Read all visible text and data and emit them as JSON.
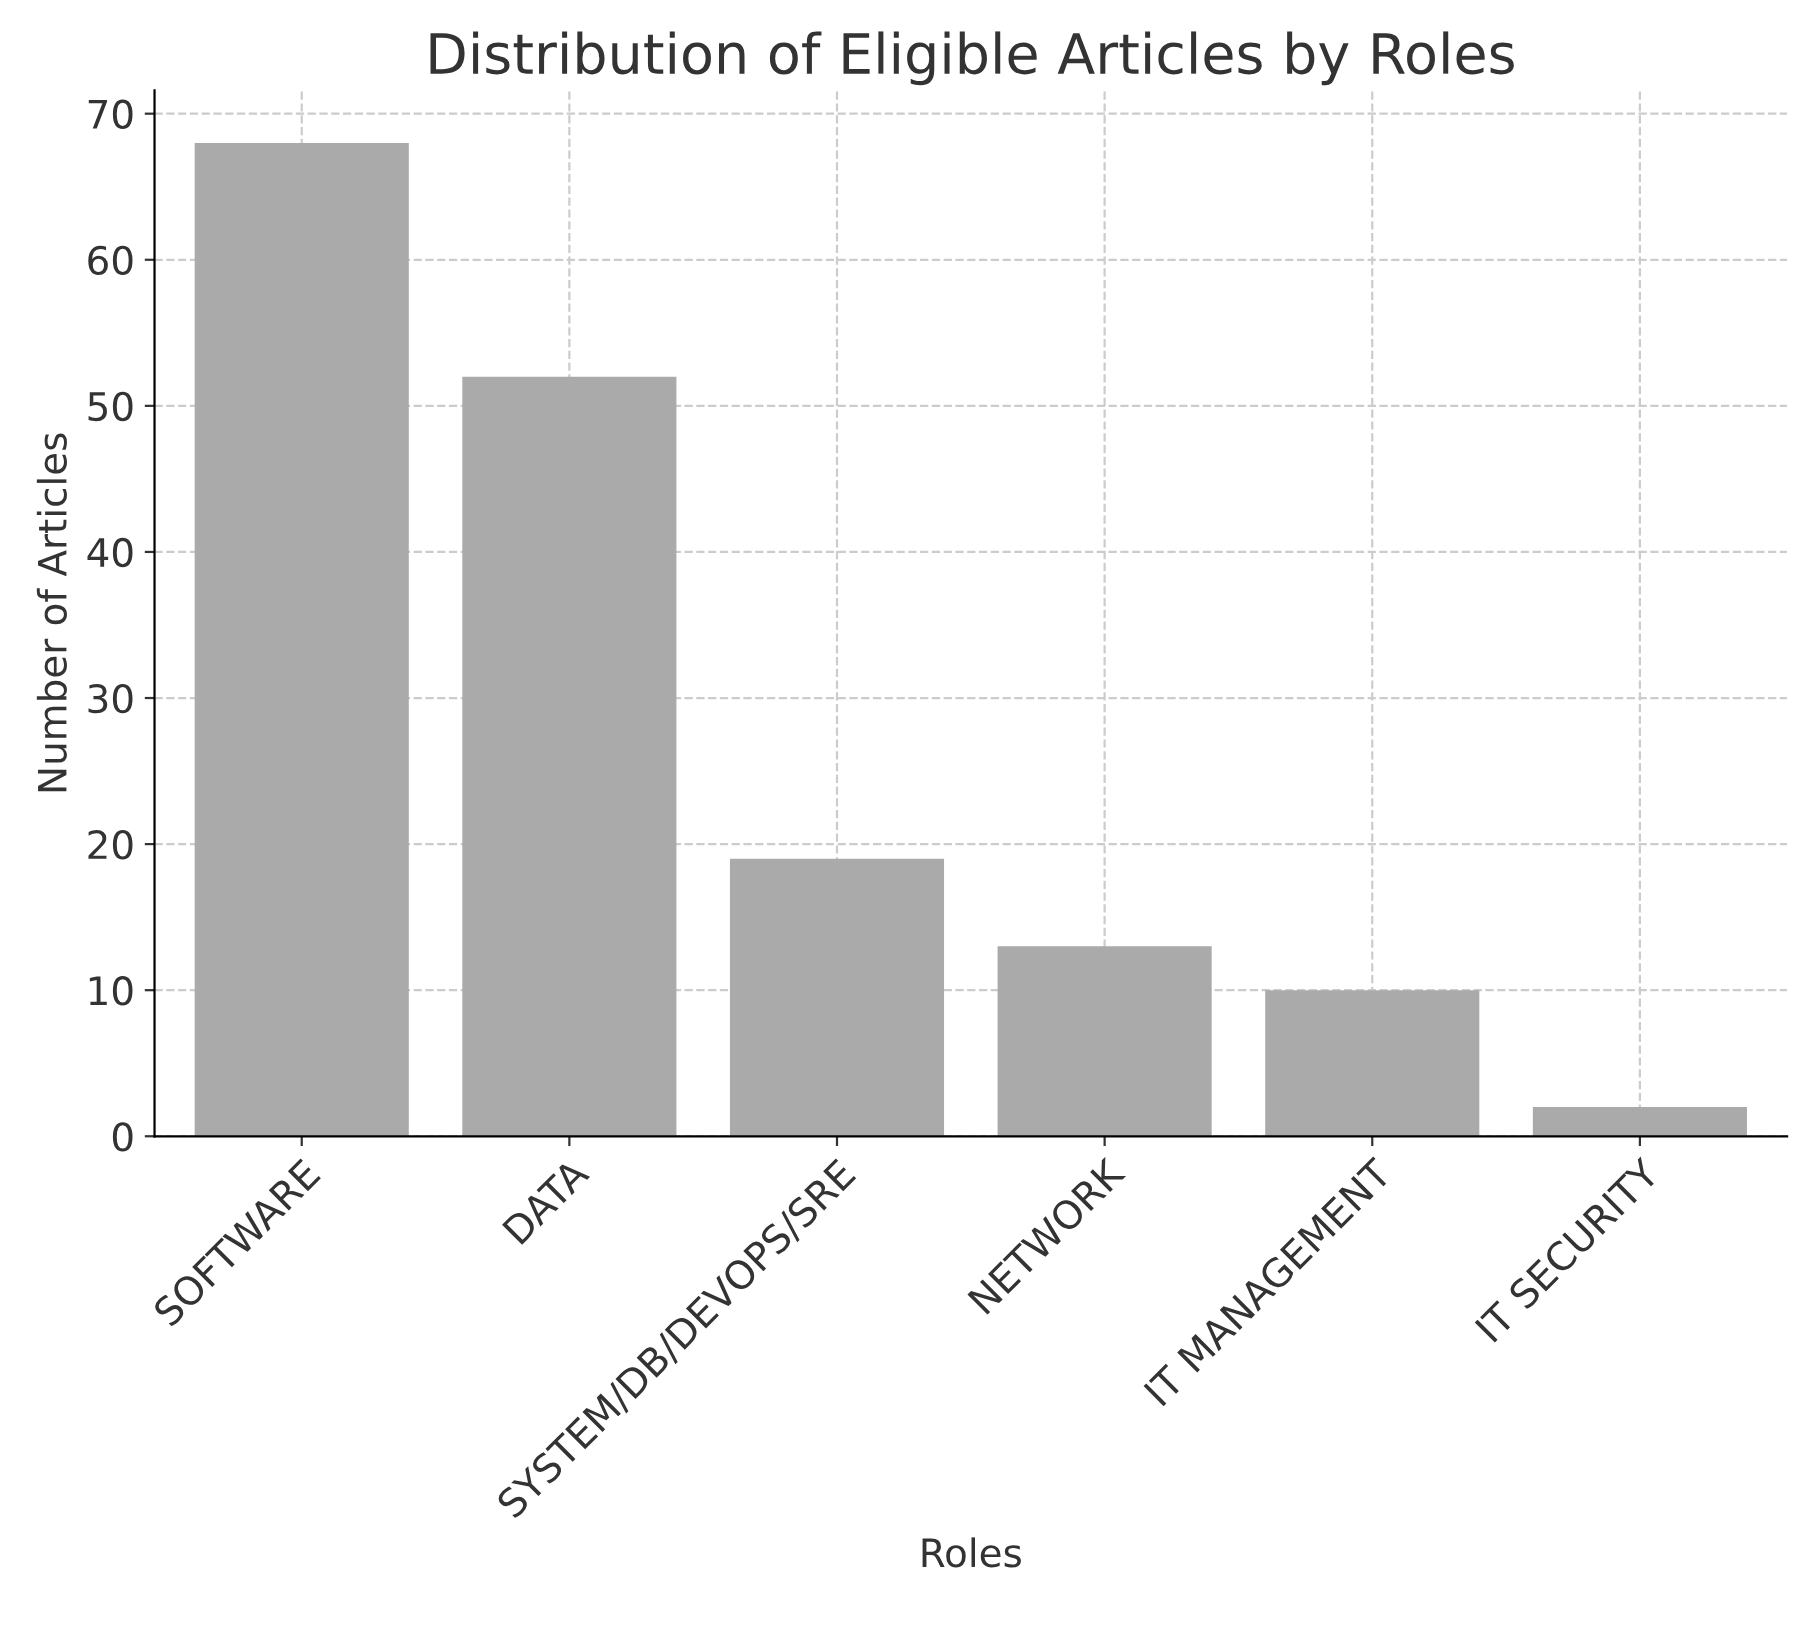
{
  "chart_data": {
    "type": "bar",
    "title": "Distribution of Eligible Articles by Roles",
    "xlabel": "Roles",
    "ylabel": "Number of Articles",
    "categories": [
      "SOFTWARE",
      "DATA",
      "SYSTEM/DB/DEVOPS/SRE",
      "NETWORK",
      "IT MANAGEMENT",
      "IT SECURITY"
    ],
    "values": [
      68,
      52,
      19,
      13,
      10,
      2
    ],
    "color": "#aaaaaa",
    "ylim": [
      0,
      71.6
    ],
    "yticks": [
      0,
      10,
      20,
      30,
      40,
      50,
      60,
      70
    ],
    "grid": true,
    "line_style": "dashed"
  }
}
